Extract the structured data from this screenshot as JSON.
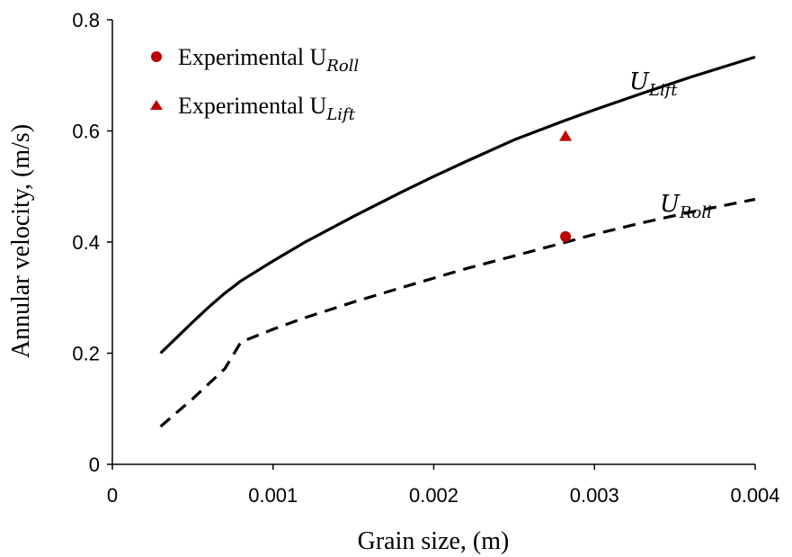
{
  "chart_data": {
    "type": "line",
    "xlabel": "Grain size, (m)",
    "ylabel": "Annular velocity, (m/s)",
    "xlim": [
      0,
      0.004
    ],
    "ylim": [
      0,
      0.8
    ],
    "x_ticks": [
      "0",
      "0.001",
      "0.002",
      "0.003",
      "0.004"
    ],
    "y_ticks": [
      "0",
      "0.2",
      "0.4",
      "0.6",
      "0.8"
    ],
    "grid": false,
    "legend_position": "top-left",
    "series": [
      {
        "label_main": "U",
        "label_sub": "Lift",
        "style": "solid",
        "color": "#000000",
        "x": [
          0.0003,
          0.0004,
          0.0005,
          0.0006,
          0.0007,
          0.0008,
          0.001,
          0.0012,
          0.0015,
          0.0018,
          0.002,
          0.0022,
          0.0025,
          0.0028,
          0.003,
          0.0033,
          0.0036,
          0.004
        ],
        "y": [
          0.2,
          0.228,
          0.256,
          0.283,
          0.308,
          0.33,
          0.366,
          0.4,
          0.446,
          0.49,
          0.518,
          0.545,
          0.584,
          0.617,
          0.638,
          0.668,
          0.697,
          0.733
        ]
      },
      {
        "label_main": "U",
        "label_sub": "Roll",
        "style": "dashed",
        "color": "#000000",
        "x": [
          0.0003,
          0.0005,
          0.0007,
          0.0008,
          0.001,
          0.0012,
          0.0015,
          0.0018,
          0.002,
          0.0022,
          0.0025,
          0.0028,
          0.003,
          0.0033,
          0.0036,
          0.004
        ],
        "y": [
          0.068,
          0.118,
          0.172,
          0.22,
          0.243,
          0.264,
          0.292,
          0.318,
          0.335,
          0.352,
          0.375,
          0.398,
          0.414,
          0.435,
          0.454,
          0.477
        ]
      }
    ],
    "points": [
      {
        "label_main": "Experimental U",
        "label_sub": "Roll",
        "marker": "circle",
        "color": "#c00000",
        "x": 0.00282,
        "y": 0.41
      },
      {
        "label_main": "Experimental U",
        "label_sub": "Lift",
        "marker": "triangle",
        "color": "#c00000",
        "x": 0.00282,
        "y": 0.59
      }
    ]
  }
}
